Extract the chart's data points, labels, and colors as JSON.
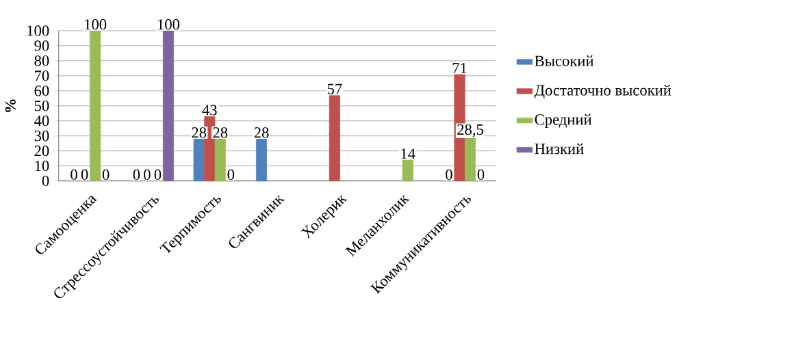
{
  "chart_data": {
    "type": "bar",
    "ylabel": "%",
    "categories": [
      "Самооценка",
      "Стрессоустойчивость",
      "Терпимость",
      "Сангвиник",
      "Холерик",
      "Меланхолик",
      "Коммуникативность"
    ],
    "series": [
      {
        "name": "Высокий",
        "color": "#4f81bd",
        "values": [
          0,
          0,
          28,
          28,
          null,
          null,
          0
        ],
        "value_labels": [
          "0",
          "0",
          "28",
          "28",
          null,
          null,
          "0"
        ]
      },
      {
        "name": "Достаточно высокий",
        "color": "#c0504d",
        "values": [
          0,
          0,
          43,
          null,
          57,
          null,
          71
        ],
        "value_labels": [
          "0",
          "0",
          "43",
          null,
          "57",
          null,
          "71"
        ]
      },
      {
        "name": "Средний",
        "color": "#9bbb59",
        "values": [
          100,
          0,
          28,
          null,
          null,
          14,
          28.5
        ],
        "value_labels": [
          "100",
          "0",
          "28",
          null,
          null,
          "14",
          "28,5"
        ]
      },
      {
        "name": "Низкий",
        "color": "#8064a2",
        "values": [
          0,
          100,
          0,
          null,
          null,
          null,
          0
        ],
        "value_labels": [
          "0",
          "100",
          "0",
          null,
          null,
          null,
          "0"
        ]
      }
    ],
    "ylim": [
      0,
      100
    ],
    "yticks": [
      0,
      10,
      20,
      30,
      40,
      50,
      60,
      70,
      80,
      90,
      100
    ],
    "grid": "y",
    "legend": "right"
  }
}
